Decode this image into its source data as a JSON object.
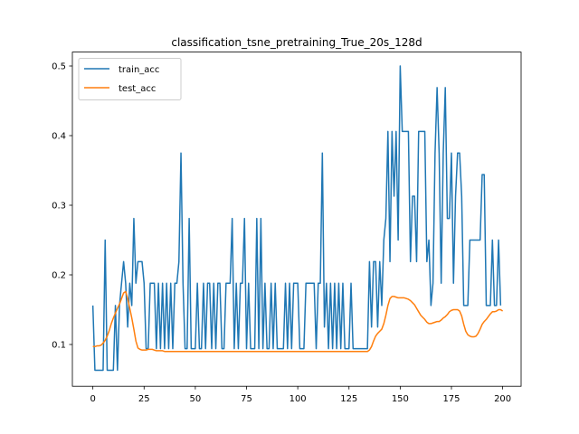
{
  "chart_data": {
    "type": "line",
    "title": "classification_tsne_pretraining_True_20s_128d",
    "xlabel": "",
    "ylabel": "",
    "xlim": [
      -10,
      209
    ],
    "ylim": [
      0.04,
      0.52
    ],
    "xticks": [
      0,
      25,
      50,
      75,
      100,
      125,
      150,
      175,
      200
    ],
    "yticks": [
      0.1,
      0.2,
      0.3,
      0.4,
      0.5
    ],
    "xtick_labels": [
      "0",
      "25",
      "50",
      "75",
      "100",
      "125",
      "150",
      "175",
      "200"
    ],
    "ytick_labels": [
      "0.1",
      "0.2",
      "0.3",
      "0.4",
      "0.5"
    ],
    "grid": false,
    "legend_position": "top-left",
    "series": [
      {
        "name": "train_acc",
        "color": "#1f77b4",
        "values": [
          0.156,
          0.063,
          0.063,
          0.063,
          0.063,
          0.063,
          0.25,
          0.063,
          0.063,
          0.063,
          0.063,
          0.156,
          0.063,
          0.156,
          0.188,
          0.219,
          0.188,
          0.125,
          0.188,
          0.156,
          0.281,
          0.188,
          0.219,
          0.219,
          0.219,
          0.188,
          0.094,
          0.094,
          0.188,
          0.188,
          0.188,
          0.094,
          0.188,
          0.094,
          0.188,
          0.094,
          0.188,
          0.094,
          0.188,
          0.094,
          0.188,
          0.188,
          0.219,
          0.375,
          0.188,
          0.094,
          0.094,
          0.281,
          0.094,
          0.094,
          0.094,
          0.188,
          0.094,
          0.094,
          0.188,
          0.094,
          0.188,
          0.188,
          0.094,
          0.188,
          0.094,
          0.188,
          0.188,
          0.094,
          0.094,
          0.188,
          0.188,
          0.188,
          0.281,
          0.094,
          0.188,
          0.094,
          0.188,
          0.188,
          0.281,
          0.094,
          0.188,
          0.094,
          0.094,
          0.094,
          0.281,
          0.094,
          0.281,
          0.094,
          0.188,
          0.094,
          0.094,
          0.188,
          0.094,
          0.188,
          0.094,
          0.094,
          0.094,
          0.094,
          0.188,
          0.094,
          0.188,
          0.094,
          0.188,
          0.188,
          0.188,
          0.094,
          0.094,
          0.094,
          0.188,
          0.188,
          0.188,
          0.188,
          0.188,
          0.094,
          0.188,
          0.188,
          0.375,
          0.125,
          0.188,
          0.094,
          0.188,
          0.094,
          0.188,
          0.094,
          0.188,
          0.094,
          0.188,
          0.094,
          0.094,
          0.094,
          0.188,
          0.094,
          0.094,
          0.094,
          0.094,
          0.094,
          0.094,
          0.094,
          0.094,
          0.219,
          0.125,
          0.219,
          0.219,
          0.125,
          0.219,
          0.156,
          0.25,
          0.281,
          0.406,
          0.219,
          0.406,
          0.313,
          0.406,
          0.25,
          0.5,
          0.406,
          0.406,
          0.406,
          0.406,
          0.219,
          0.313,
          0.313,
          0.219,
          0.406,
          0.406,
          0.406,
          0.406,
          0.219,
          0.25,
          0.156,
          0.188,
          0.375,
          0.469,
          0.375,
          0.188,
          0.375,
          0.469,
          0.281,
          0.281,
          0.375,
          0.188,
          0.313,
          0.375,
          0.375,
          0.313,
          0.156,
          0.156,
          0.156,
          0.25,
          0.25,
          0.25,
          0.25,
          0.25,
          0.25,
          0.344,
          0.344,
          0.156,
          0.156,
          0.156,
          0.25,
          0.156,
          0.156,
          0.25,
          0.156
        ]
      },
      {
        "name": "test_acc",
        "color": "#ff7f0e",
        "values": [
          0.097,
          0.097,
          0.098,
          0.098,
          0.099,
          0.102,
          0.106,
          0.112,
          0.12,
          0.13,
          0.138,
          0.145,
          0.152,
          0.158,
          0.166,
          0.174,
          0.176,
          0.166,
          0.152,
          0.138,
          0.122,
          0.105,
          0.095,
          0.093,
          0.092,
          0.092,
          0.092,
          0.093,
          0.093,
          0.093,
          0.092,
          0.091,
          0.091,
          0.091,
          0.091,
          0.09,
          0.09,
          0.09,
          0.09,
          0.09,
          0.09,
          0.09,
          0.09,
          0.09,
          0.09,
          0.09,
          0.09,
          0.09,
          0.09,
          0.09,
          0.09,
          0.09,
          0.09,
          0.09,
          0.09,
          0.09,
          0.09,
          0.09,
          0.09,
          0.09,
          0.09,
          0.09,
          0.09,
          0.09,
          0.09,
          0.09,
          0.09,
          0.09,
          0.09,
          0.09,
          0.09,
          0.09,
          0.09,
          0.09,
          0.09,
          0.09,
          0.09,
          0.09,
          0.09,
          0.09,
          0.09,
          0.09,
          0.09,
          0.09,
          0.09,
          0.09,
          0.09,
          0.09,
          0.09,
          0.09,
          0.09,
          0.09,
          0.09,
          0.09,
          0.09,
          0.09,
          0.09,
          0.09,
          0.09,
          0.09,
          0.09,
          0.09,
          0.09,
          0.09,
          0.09,
          0.09,
          0.09,
          0.09,
          0.09,
          0.09,
          0.09,
          0.09,
          0.09,
          0.09,
          0.09,
          0.09,
          0.09,
          0.09,
          0.09,
          0.09,
          0.09,
          0.09,
          0.09,
          0.09,
          0.09,
          0.09,
          0.09,
          0.09,
          0.09,
          0.09,
          0.09,
          0.09,
          0.09,
          0.09,
          0.09,
          0.092,
          0.097,
          0.105,
          0.112,
          0.116,
          0.119,
          0.122,
          0.13,
          0.142,
          0.156,
          0.166,
          0.169,
          0.169,
          0.168,
          0.167,
          0.167,
          0.167,
          0.167,
          0.166,
          0.165,
          0.163,
          0.16,
          0.157,
          0.152,
          0.147,
          0.142,
          0.139,
          0.136,
          0.132,
          0.13,
          0.13,
          0.131,
          0.132,
          0.133,
          0.133,
          0.135,
          0.138,
          0.14,
          0.143,
          0.147,
          0.149,
          0.15,
          0.15,
          0.15,
          0.148,
          0.141,
          0.129,
          0.119,
          0.114,
          0.112,
          0.111,
          0.111,
          0.112,
          0.116,
          0.122,
          0.129,
          0.133,
          0.136,
          0.14,
          0.144,
          0.147,
          0.147,
          0.148,
          0.15,
          0.15,
          0.148
        ]
      }
    ]
  }
}
